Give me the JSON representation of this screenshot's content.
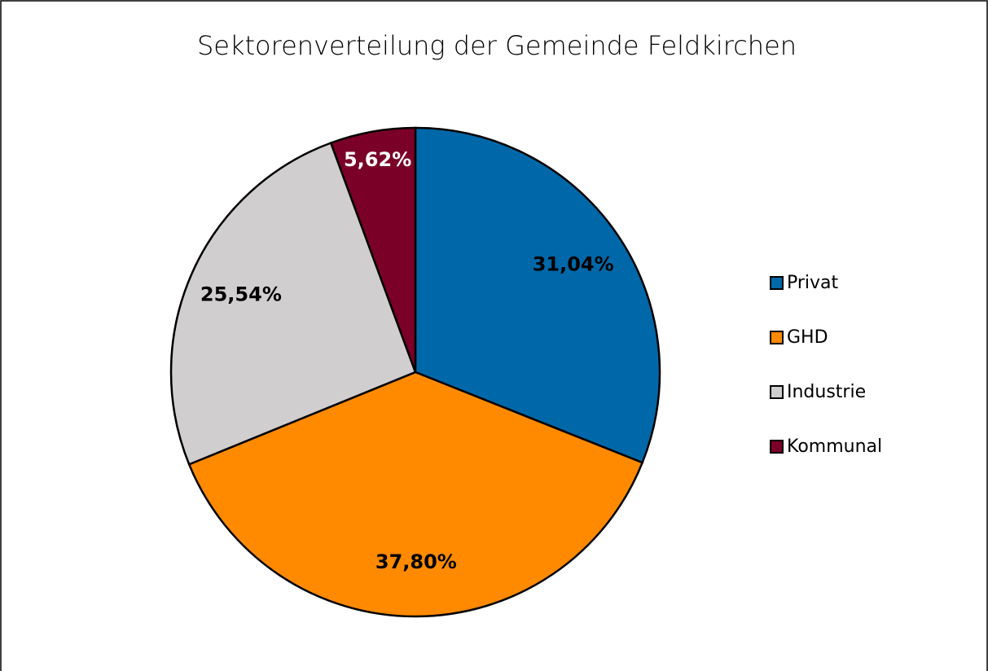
{
  "chart_data": {
    "type": "pie",
    "title": "Sektorenverteilung der Gemeinde Feldkirchen",
    "categories": [
      "Privat",
      "GHD",
      "Industrie",
      "Kommunal"
    ],
    "values": [
      31.04,
      37.8,
      25.54,
      5.62
    ],
    "value_labels": [
      "31,04%",
      "37,80%",
      "25,54%",
      "5,62%"
    ],
    "colors": [
      "#0068a8",
      "#ff8a00",
      "#d0cece",
      "#7a0028"
    ],
    "legend": "right"
  }
}
